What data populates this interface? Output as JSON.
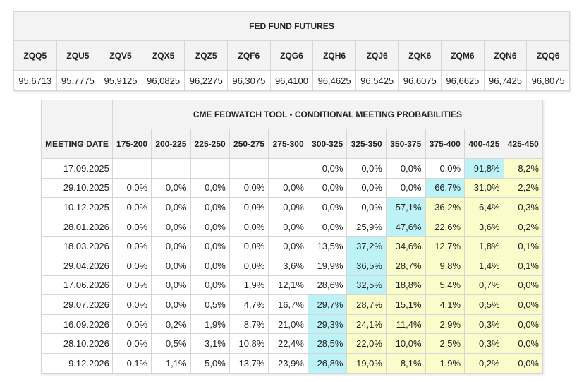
{
  "futures": {
    "title": "FED FUND FUTURES",
    "codes": [
      "ZQQ5",
      "ZQU5",
      "ZQV5",
      "ZQX5",
      "ZQZ5",
      "ZQF6",
      "ZQG6",
      "ZQH6",
      "ZQJ6",
      "ZQK6",
      "ZQM6",
      "ZQN6",
      "ZQQ6"
    ],
    "prices": [
      "95,6713",
      "95,7775",
      "95,9125",
      "96,0825",
      "96,2275",
      "96,3075",
      "96,4100",
      "96,4625",
      "96,5425",
      "96,6075",
      "96,6625",
      "96,7425",
      "96,8075"
    ]
  },
  "fedwatch": {
    "title": "CME FEDWATCH TOOL - CONDITIONAL MEETING PROBABILITIES",
    "date_header": "MEETING DATE",
    "ranges": [
      "175-200",
      "200-225",
      "225-250",
      "250-275",
      "275-300",
      "300-325",
      "325-350",
      "350-375",
      "375-400",
      "400-425",
      "425-450"
    ],
    "colors": {
      "max_highlight": "#bdf2f6",
      "tail_highlight": "#fafcca"
    },
    "rows": [
      {
        "date": "17.09.2025",
        "values": [
          "",
          "",
          "",
          "",
          "",
          "0,0%",
          "0,0%",
          "0,0%",
          "0,0%",
          "91,8%",
          "8,2%"
        ],
        "hl": [
          "",
          "",
          "",
          "",
          "",
          "",
          "",
          "",
          "",
          "c",
          "y"
        ]
      },
      {
        "date": "29.10.2025",
        "values": [
          "0,0%",
          "0,0%",
          "0,0%",
          "0,0%",
          "0,0%",
          "0,0%",
          "0,0%",
          "0,0%",
          "66,7%",
          "31,0%",
          "2,2%"
        ],
        "hl": [
          "",
          "",
          "",
          "",
          "",
          "",
          "",
          "",
          "c",
          "y",
          "y"
        ]
      },
      {
        "date": "10.12.2025",
        "values": [
          "0,0%",
          "0,0%",
          "0,0%",
          "0,0%",
          "0,0%",
          "0,0%",
          "0,0%",
          "57,1%",
          "36,2%",
          "6,4%",
          "0,3%"
        ],
        "hl": [
          "",
          "",
          "",
          "",
          "",
          "",
          "",
          "c",
          "y",
          "y",
          "y"
        ]
      },
      {
        "date": "28.01.2026",
        "values": [
          "0,0%",
          "0,0%",
          "0,0%",
          "0,0%",
          "0,0%",
          "0,0%",
          "25,9%",
          "47,6%",
          "22,6%",
          "3,6%",
          "0,2%"
        ],
        "hl": [
          "",
          "",
          "",
          "",
          "",
          "",
          "",
          "c",
          "y",
          "y",
          "y"
        ]
      },
      {
        "date": "18.03.2026",
        "values": [
          "0,0%",
          "0,0%",
          "0,0%",
          "0,0%",
          "0,0%",
          "13,5%",
          "37,2%",
          "34,6%",
          "12,7%",
          "1,8%",
          "0,1%"
        ],
        "hl": [
          "",
          "",
          "",
          "",
          "",
          "",
          "c",
          "y",
          "y",
          "y",
          "y"
        ]
      },
      {
        "date": "29.04.2026",
        "values": [
          "0,0%",
          "0,0%",
          "0,0%",
          "0,0%",
          "3,6%",
          "19,9%",
          "36,5%",
          "28,7%",
          "9,8%",
          "1,4%",
          "0,1%"
        ],
        "hl": [
          "",
          "",
          "",
          "",
          "",
          "",
          "c",
          "y",
          "y",
          "y",
          "y"
        ]
      },
      {
        "date": "17.06.2026",
        "values": [
          "0,0%",
          "0,0%",
          "0,0%",
          "1,9%",
          "12,1%",
          "28,6%",
          "32,5%",
          "18,8%",
          "5,4%",
          "0,7%",
          "0,0%"
        ],
        "hl": [
          "",
          "",
          "",
          "",
          "",
          "",
          "c",
          "y",
          "y",
          "y",
          "y"
        ]
      },
      {
        "date": "29.07.2026",
        "values": [
          "0,0%",
          "0,0%",
          "0,5%",
          "4,7%",
          "16,7%",
          "29,7%",
          "28,7%",
          "15,1%",
          "4,1%",
          "0,5%",
          "0,0%"
        ],
        "hl": [
          "",
          "",
          "",
          "",
          "",
          "c",
          "y",
          "y",
          "y",
          "y",
          "y"
        ]
      },
      {
        "date": "16.09.2026",
        "values": [
          "0,0%",
          "0,2%",
          "1,9%",
          "8,7%",
          "21,0%",
          "29,3%",
          "24,1%",
          "11,4%",
          "2,9%",
          "0,3%",
          "0,0%"
        ],
        "hl": [
          "",
          "",
          "",
          "",
          "",
          "c",
          "y",
          "y",
          "y",
          "y",
          "y"
        ]
      },
      {
        "date": "28.10.2026",
        "values": [
          "0,0%",
          "0,5%",
          "3,1%",
          "10,8%",
          "22,4%",
          "28,5%",
          "22,0%",
          "10,0%",
          "2,5%",
          "0,3%",
          "0,0%"
        ],
        "hl": [
          "",
          "",
          "",
          "",
          "",
          "c",
          "y",
          "y",
          "y",
          "y",
          "y"
        ]
      },
      {
        "date": "9.12.2026",
        "values": [
          "0,1%",
          "1,1%",
          "5,0%",
          "13,7%",
          "23,9%",
          "26,8%",
          "19,0%",
          "8,1%",
          "1,9%",
          "0,2%",
          "0,0%"
        ],
        "hl": [
          "",
          "",
          "",
          "",
          "",
          "c",
          "y",
          "y",
          "y",
          "y",
          "y"
        ]
      }
    ]
  }
}
